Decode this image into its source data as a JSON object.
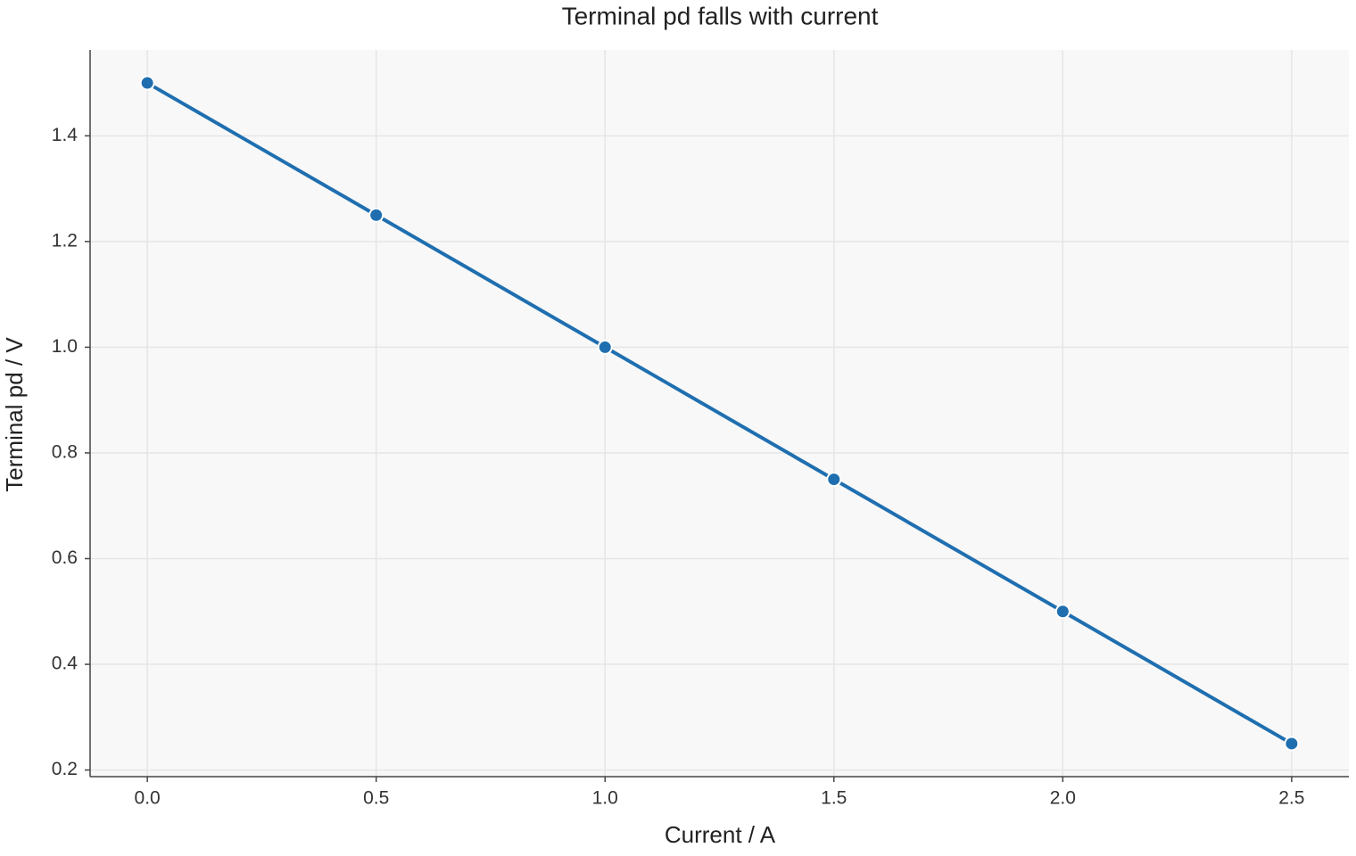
{
  "chart_data": {
    "type": "line",
    "title": "Terminal pd falls with current",
    "x_label": "Current / A",
    "y_label": "Terminal pd / V",
    "x": [
      0,
      0.5,
      1.0,
      1.5,
      2.0,
      2.5
    ],
    "series": [
      {
        "color": "#1f6fb0",
        "values": [
          1.5,
          1.25,
          1.0,
          0.75,
          0.5,
          0.25
        ]
      }
    ],
    "xlim": [
      -0.125,
      2.625
    ],
    "xticks": [
      {
        "value": 0,
        "label": "0.0"
      },
      0.5,
      {
        "value": 1,
        "label": "1.0"
      },
      1.5,
      {
        "value": 2,
        "label": "2.0"
      },
      2.5
    ],
    "ylim": [
      0.1875,
      1.5625
    ],
    "yticks": [
      0.2,
      0.4,
      0.6,
      0.8,
      {
        "value": 1,
        "label": "1.0"
      },
      1.2,
      1.4
    ],
    "grid": true
  }
}
